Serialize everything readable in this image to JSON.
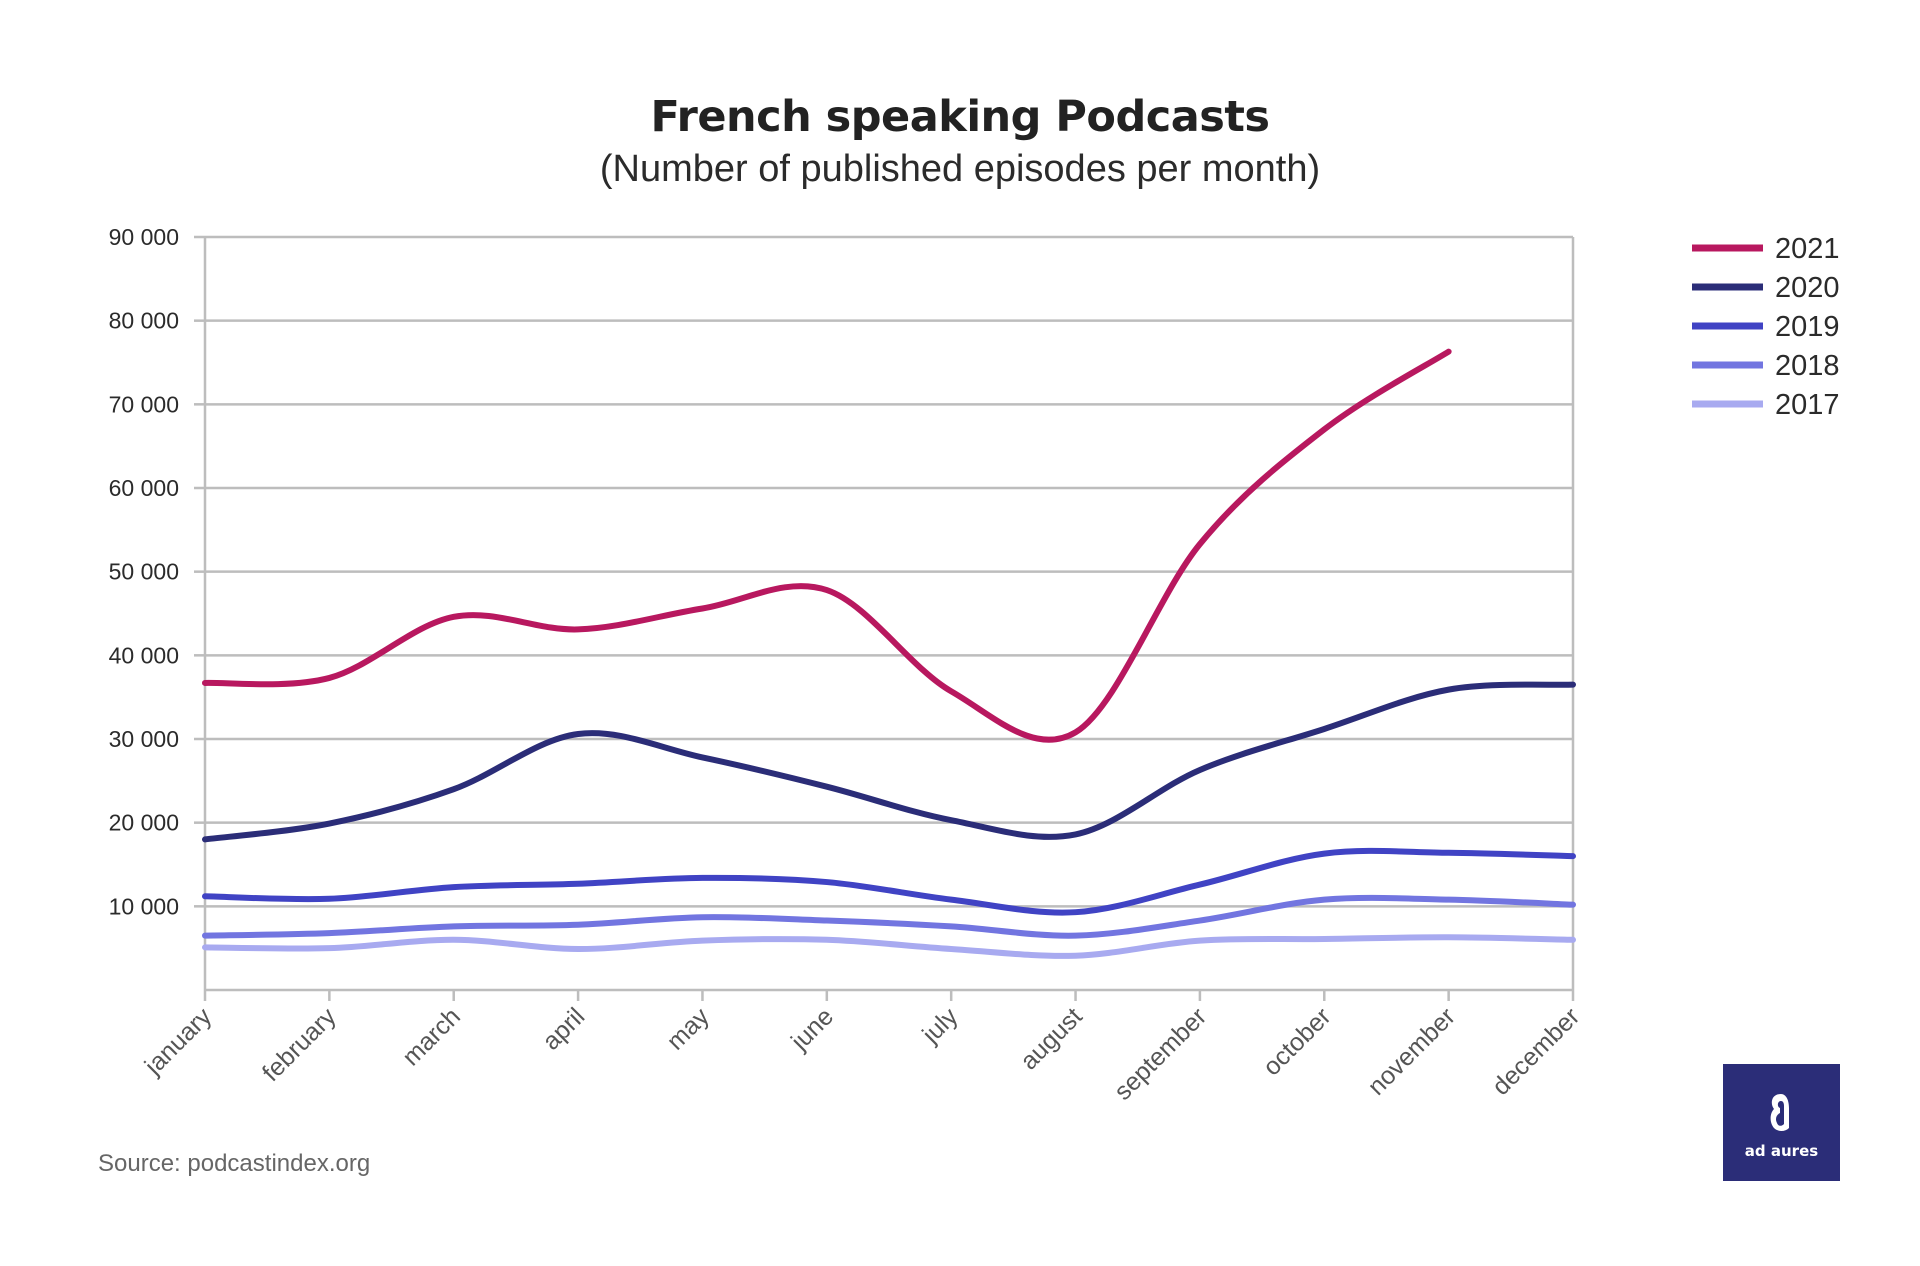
{
  "chart_data": {
    "type": "line",
    "title": "French speaking Podcasts",
    "subtitle": "(Number of published episodes per month)",
    "categories": [
      "january",
      "february",
      "march",
      "april",
      "may",
      "june",
      "july",
      "august",
      "september",
      "october",
      "november",
      "december"
    ],
    "ylim": [
      0,
      90000
    ],
    "yticks": [
      10000,
      20000,
      30000,
      40000,
      50000,
      60000,
      70000,
      80000,
      90000
    ],
    "ytick_labels": [
      "10 000",
      "20 000",
      "30 000",
      "40 000",
      "50 000",
      "60 000",
      "70 000",
      "80 000",
      "90 000"
    ],
    "grid": true,
    "legend_position": "top-right",
    "series": [
      {
        "name": "2021",
        "color": "#b8185f",
        "values": [
          36700,
          37300,
          44600,
          43100,
          45600,
          47800,
          35700,
          30800,
          53300,
          67000,
          76300,
          null
        ]
      },
      {
        "name": "2020",
        "color": "#2b2d78",
        "values": [
          18000,
          19900,
          24000,
          30600,
          27800,
          24300,
          20300,
          18600,
          26300,
          31200,
          35900,
          36500
        ]
      },
      {
        "name": "2019",
        "color": "#4043c4",
        "values": [
          11200,
          10900,
          12300,
          12700,
          13400,
          12900,
          10800,
          9300,
          12600,
          16300,
          16400,
          16000
        ]
      },
      {
        "name": "2018",
        "color": "#7275e0",
        "values": [
          6500,
          6800,
          7600,
          7800,
          8700,
          8300,
          7600,
          6500,
          8300,
          10800,
          10800,
          10200
        ]
      },
      {
        "name": "2017",
        "color": "#a8aaf0",
        "values": [
          5100,
          5000,
          6000,
          4900,
          5900,
          6000,
          4900,
          4100,
          5900,
          6100,
          6300,
          6000
        ]
      }
    ]
  },
  "source": "Source: podcastindex.org",
  "logo": {
    "text": "ad aures",
    "bg_color": "#2b2d78"
  }
}
